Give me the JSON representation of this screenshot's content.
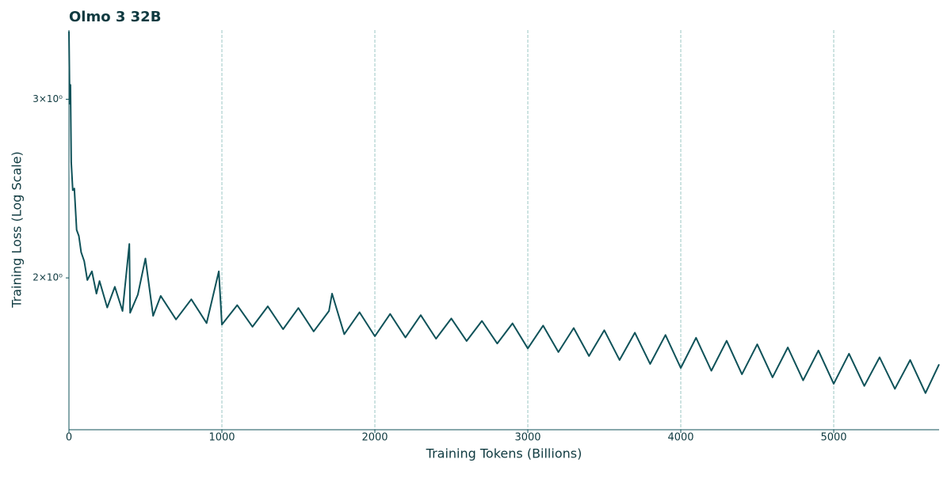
{
  "chart_data": {
    "type": "line",
    "title": "Olmo 3 32B",
    "x_label": "Training Tokens (Billions)",
    "y_label": "Training Loss (Log Scale)",
    "y_scale": "log",
    "grid": "x",
    "color": "#0f5259",
    "xlim": [
      0,
      5689
    ],
    "xticks": [
      0,
      1000,
      2000,
      3000,
      4000,
      5000
    ],
    "ylim": [
      1.417,
      3.51
    ],
    "yticks": [
      {
        "value": 2,
        "label": "2×10⁰"
      },
      {
        "value": 3,
        "label": "3×10⁰"
      }
    ],
    "x": [
      0,
      5,
      10,
      15,
      25,
      35,
      50,
      65,
      80,
      100,
      120,
      150,
      180,
      200,
      250,
      300,
      350,
      395,
      400,
      450,
      500,
      550,
      600,
      700,
      800,
      900,
      980,
      1000,
      1100,
      1200,
      1300,
      1400,
      1500,
      1600,
      1700,
      1720,
      1800,
      1900,
      2000,
      2100,
      2200,
      2300,
      2400,
      2500,
      2600,
      2700,
      2800,
      2900,
      3000,
      3100,
      3200,
      3300,
      3400,
      3500,
      3600,
      3700,
      3800,
      3900,
      4000,
      4100,
      4200,
      4300,
      4400,
      4500,
      4600,
      4700,
      4800,
      4900,
      5000,
      5100,
      5200,
      5300,
      5400,
      5500,
      5600,
      5689
    ],
    "values": [
      3.5,
      2.97,
      3.1,
      2.6,
      2.44,
      2.45,
      2.23,
      2.2,
      2.12,
      2.077,
      1.99,
      2.03,
      1.93,
      1.986,
      1.87,
      1.96,
      1.855,
      2.16,
      1.848,
      1.925,
      2.09,
      1.835,
      1.92,
      1.82,
      1.905,
      1.805,
      2.03,
      1.799,
      1.88,
      1.79,
      1.875,
      1.78,
      1.868,
      1.771,
      1.855,
      1.93,
      1.76,
      1.85,
      1.752,
      1.843,
      1.747,
      1.838,
      1.742,
      1.824,
      1.733,
      1.814,
      1.723,
      1.804,
      1.704,
      1.795,
      1.69,
      1.785,
      1.675,
      1.776,
      1.66,
      1.766,
      1.645,
      1.757,
      1.63,
      1.746,
      1.62,
      1.734,
      1.607,
      1.72,
      1.596,
      1.708,
      1.585,
      1.696,
      1.573,
      1.684,
      1.565,
      1.67,
      1.555,
      1.66,
      1.54,
      1.644
    ]
  }
}
